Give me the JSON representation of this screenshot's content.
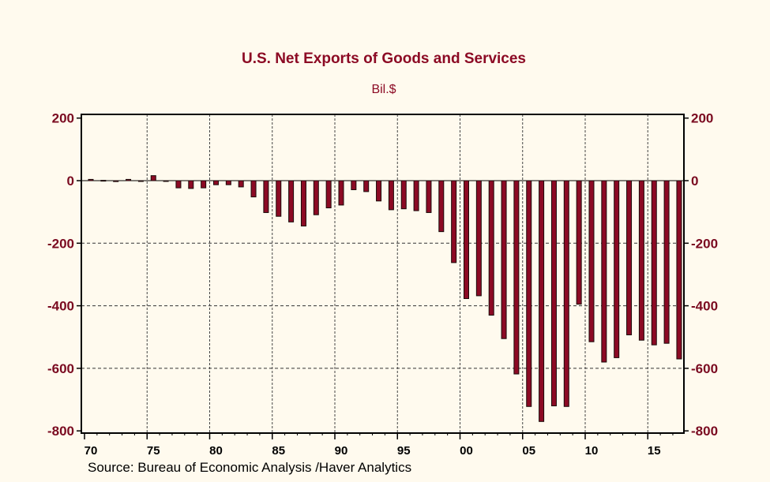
{
  "chart_data": {
    "type": "bar",
    "title": "U.S. Net Exports of Goods and Services",
    "subtitle": "Bil.$",
    "source": "Source:  Bureau of Economic Analysis /Haver Analytics",
    "categories": [
      1970,
      1971,
      1972,
      1973,
      1974,
      1975,
      1976,
      1977,
      1978,
      1979,
      1980,
      1981,
      1982,
      1983,
      1984,
      1985,
      1986,
      1987,
      1988,
      1989,
      1990,
      1991,
      1992,
      1993,
      1994,
      1995,
      1996,
      1997,
      1998,
      1999,
      2000,
      2001,
      2002,
      2003,
      2004,
      2005,
      2006,
      2007,
      2008,
      2009,
      2010,
      2011,
      2012,
      2013,
      2014,
      2015,
      2016,
      2017
    ],
    "values": [
      4,
      1,
      -3,
      4,
      -1,
      16,
      -2,
      -23,
      -25,
      -23,
      -13,
      -13,
      -20,
      -52,
      -102,
      -114,
      -132,
      -145,
      -109,
      -87,
      -78,
      -29,
      -35,
      -65,
      -93,
      -90,
      -96,
      -102,
      -163,
      -262,
      -377,
      -368,
      -430,
      -505,
      -618,
      -722,
      -770,
      -720,
      -722,
      -395,
      -515,
      -580,
      -566,
      -493,
      -510,
      -525,
      -520,
      -570
    ],
    "xtick_labels": [
      "70",
      "75",
      "80",
      "85",
      "90",
      "95",
      "00",
      "05",
      "10",
      "15"
    ],
    "ytick_labels": [
      "200",
      "0",
      "-200",
      "-400",
      "-600",
      "-800"
    ],
    "ylim": [
      -800,
      200
    ],
    "xlim": [
      1970,
      2018
    ],
    "grid": true,
    "bar_color": "#8c0a24",
    "background": "#fffaee"
  }
}
